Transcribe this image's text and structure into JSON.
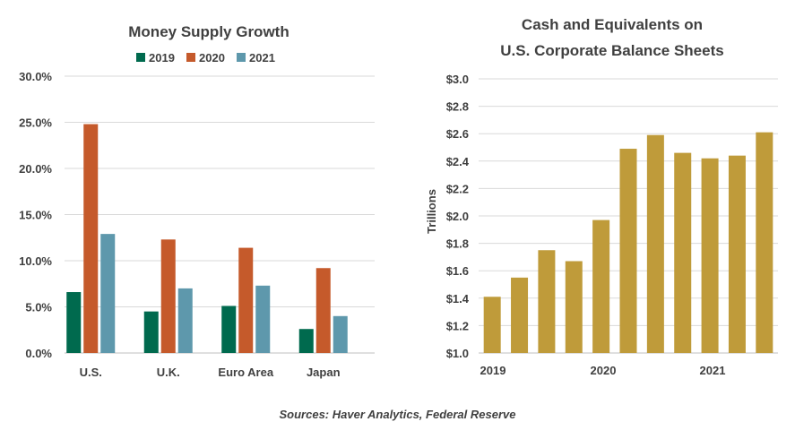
{
  "chart_data": [
    {
      "type": "bar",
      "title": "Money Supply Growth",
      "categories": [
        "U.S.",
        "U.K.",
        "Euro Area",
        "Japan"
      ],
      "series": [
        {
          "name": "2019",
          "color": "#006a4e",
          "values": [
            6.6,
            4.5,
            5.1,
            2.6
          ]
        },
        {
          "name": "2020",
          "color": "#c55a2b",
          "values": [
            24.8,
            12.3,
            11.4,
            9.2
          ]
        },
        {
          "name": "2021",
          "color": "#5e98ac",
          "values": [
            12.9,
            7.0,
            7.3,
            4.0
          ]
        }
      ],
      "ylim": [
        0,
        30
      ],
      "yticks": [
        "0.0%",
        "5.0%",
        "10.0%",
        "15.0%",
        "20.0%",
        "25.0%",
        "30.0%"
      ],
      "grid": true,
      "legend": "top"
    },
    {
      "type": "bar",
      "title": [
        "Cash and Equivalents on",
        "U.S. Corporate Balance Sheets"
      ],
      "ylabel": "Trillions",
      "color": "#bf9b3a",
      "values": [
        1.41,
        1.55,
        1.75,
        1.67,
        1.97,
        2.49,
        2.59,
        2.46,
        2.42,
        2.44,
        2.61
      ],
      "xticks": [
        "2019",
        "2020",
        "2021"
      ],
      "ylim": [
        1.0,
        3.0
      ],
      "yticks": [
        "$1.0",
        "$1.2",
        "$1.4",
        "$1.6",
        "$1.8",
        "$2.0",
        "$2.2",
        "$2.4",
        "$2.6",
        "$2.8",
        "$3.0"
      ],
      "grid": true
    }
  ],
  "source_note": "Sources: Haver Analytics, Federal Reserve"
}
